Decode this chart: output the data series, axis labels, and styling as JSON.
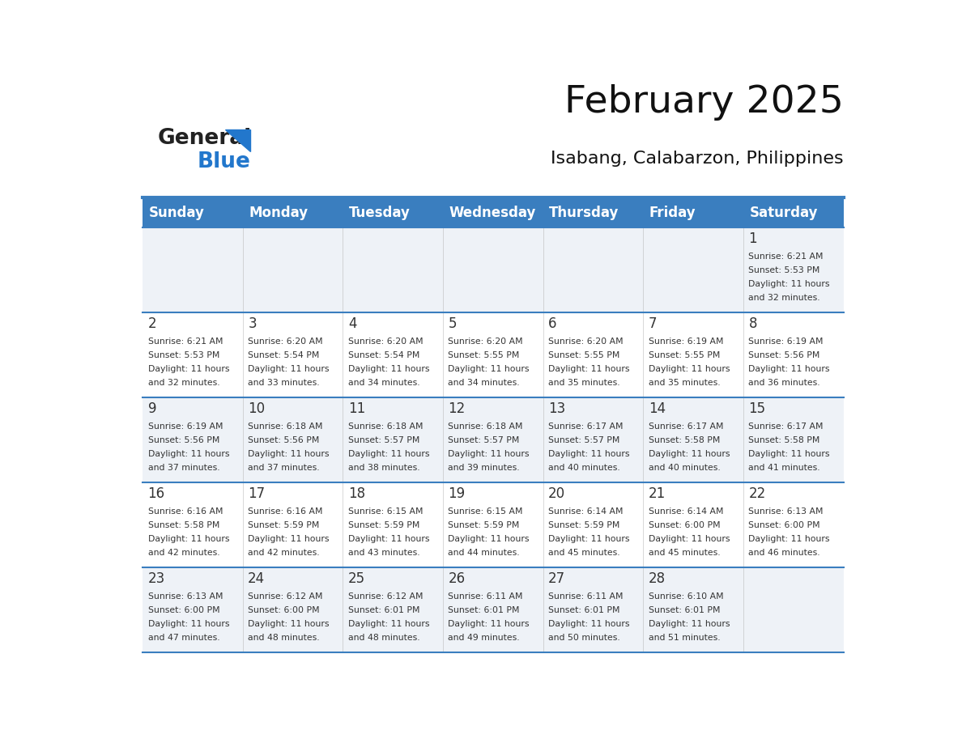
{
  "title": "February 2025",
  "subtitle": "Isabang, Calabarzon, Philippines",
  "days_of_week": [
    "Sunday",
    "Monday",
    "Tuesday",
    "Wednesday",
    "Thursday",
    "Friday",
    "Saturday"
  ],
  "header_bg": "#3a7ebf",
  "header_text": "#ffffff",
  "cell_bg_light": "#eef2f7",
  "cell_bg_white": "#ffffff",
  "separator_color": "#3a7ebf",
  "text_color": "#333333",
  "day_num_color": "#333333",
  "logo_general_color": "#222222",
  "logo_blue_color": "#2277cc",
  "logo_triangle_color": "#2277cc",
  "calendar_data": [
    [
      {
        "day": null,
        "sunrise": null,
        "sunset": null,
        "daylight": null
      },
      {
        "day": null,
        "sunrise": null,
        "sunset": null,
        "daylight": null
      },
      {
        "day": null,
        "sunrise": null,
        "sunset": null,
        "daylight": null
      },
      {
        "day": null,
        "sunrise": null,
        "sunset": null,
        "daylight": null
      },
      {
        "day": null,
        "sunrise": null,
        "sunset": null,
        "daylight": null
      },
      {
        "day": null,
        "sunrise": null,
        "sunset": null,
        "daylight": null
      },
      {
        "day": 1,
        "sunrise": "6:21 AM",
        "sunset": "5:53 PM",
        "daylight": "11 hours and 32 minutes."
      }
    ],
    [
      {
        "day": 2,
        "sunrise": "6:21 AM",
        "sunset": "5:53 PM",
        "daylight": "11 hours and 32 minutes."
      },
      {
        "day": 3,
        "sunrise": "6:20 AM",
        "sunset": "5:54 PM",
        "daylight": "11 hours and 33 minutes."
      },
      {
        "day": 4,
        "sunrise": "6:20 AM",
        "sunset": "5:54 PM",
        "daylight": "11 hours and 34 minutes."
      },
      {
        "day": 5,
        "sunrise": "6:20 AM",
        "sunset": "5:55 PM",
        "daylight": "11 hours and 34 minutes."
      },
      {
        "day": 6,
        "sunrise": "6:20 AM",
        "sunset": "5:55 PM",
        "daylight": "11 hours and 35 minutes."
      },
      {
        "day": 7,
        "sunrise": "6:19 AM",
        "sunset": "5:55 PM",
        "daylight": "11 hours and 35 minutes."
      },
      {
        "day": 8,
        "sunrise": "6:19 AM",
        "sunset": "5:56 PM",
        "daylight": "11 hours and 36 minutes."
      }
    ],
    [
      {
        "day": 9,
        "sunrise": "6:19 AM",
        "sunset": "5:56 PM",
        "daylight": "11 hours and 37 minutes."
      },
      {
        "day": 10,
        "sunrise": "6:18 AM",
        "sunset": "5:56 PM",
        "daylight": "11 hours and 37 minutes."
      },
      {
        "day": 11,
        "sunrise": "6:18 AM",
        "sunset": "5:57 PM",
        "daylight": "11 hours and 38 minutes."
      },
      {
        "day": 12,
        "sunrise": "6:18 AM",
        "sunset": "5:57 PM",
        "daylight": "11 hours and 39 minutes."
      },
      {
        "day": 13,
        "sunrise": "6:17 AM",
        "sunset": "5:57 PM",
        "daylight": "11 hours and 40 minutes."
      },
      {
        "day": 14,
        "sunrise": "6:17 AM",
        "sunset": "5:58 PM",
        "daylight": "11 hours and 40 minutes."
      },
      {
        "day": 15,
        "sunrise": "6:17 AM",
        "sunset": "5:58 PM",
        "daylight": "11 hours and 41 minutes."
      }
    ],
    [
      {
        "day": 16,
        "sunrise": "6:16 AM",
        "sunset": "5:58 PM",
        "daylight": "11 hours and 42 minutes."
      },
      {
        "day": 17,
        "sunrise": "6:16 AM",
        "sunset": "5:59 PM",
        "daylight": "11 hours and 42 minutes."
      },
      {
        "day": 18,
        "sunrise": "6:15 AM",
        "sunset": "5:59 PM",
        "daylight": "11 hours and 43 minutes."
      },
      {
        "day": 19,
        "sunrise": "6:15 AM",
        "sunset": "5:59 PM",
        "daylight": "11 hours and 44 minutes."
      },
      {
        "day": 20,
        "sunrise": "6:14 AM",
        "sunset": "5:59 PM",
        "daylight": "11 hours and 45 minutes."
      },
      {
        "day": 21,
        "sunrise": "6:14 AM",
        "sunset": "6:00 PM",
        "daylight": "11 hours and 45 minutes."
      },
      {
        "day": 22,
        "sunrise": "6:13 AM",
        "sunset": "6:00 PM",
        "daylight": "11 hours and 46 minutes."
      }
    ],
    [
      {
        "day": 23,
        "sunrise": "6:13 AM",
        "sunset": "6:00 PM",
        "daylight": "11 hours and 47 minutes."
      },
      {
        "day": 24,
        "sunrise": "6:12 AM",
        "sunset": "6:00 PM",
        "daylight": "11 hours and 48 minutes."
      },
      {
        "day": 25,
        "sunrise": "6:12 AM",
        "sunset": "6:01 PM",
        "daylight": "11 hours and 48 minutes."
      },
      {
        "day": 26,
        "sunrise": "6:11 AM",
        "sunset": "6:01 PM",
        "daylight": "11 hours and 49 minutes."
      },
      {
        "day": 27,
        "sunrise": "6:11 AM",
        "sunset": "6:01 PM",
        "daylight": "11 hours and 50 minutes."
      },
      {
        "day": 28,
        "sunrise": "6:10 AM",
        "sunset": "6:01 PM",
        "daylight": "11 hours and 51 minutes."
      },
      {
        "day": null,
        "sunrise": null,
        "sunset": null,
        "daylight": null
      }
    ]
  ],
  "num_weeks": 5,
  "num_cols": 7
}
